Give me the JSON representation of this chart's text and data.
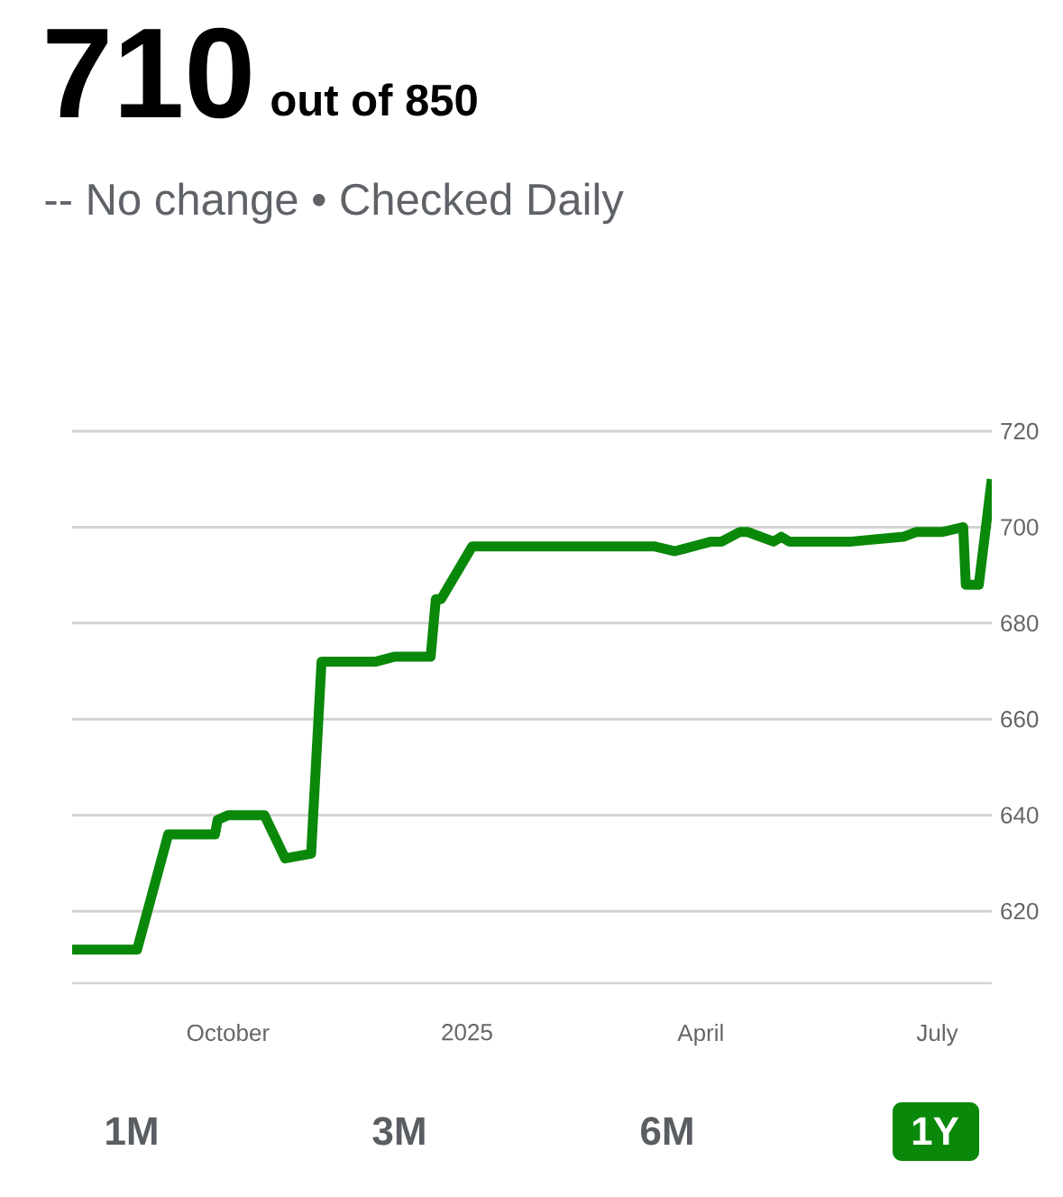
{
  "chart_data": {
    "type": "line",
    "title": "710",
    "subtitle": "out of 850",
    "annotations": [
      "-- No change • Checked Daily",
      "1M",
      "3M",
      "6M",
      "1Y"
    ],
    "x": [
      "2024-08-02",
      "2024-08-27",
      "2024-09-08",
      "2024-09-26",
      "2024-09-27",
      "2024-10-01",
      "2024-10-15",
      "2024-10-23",
      "2024-11-02",
      "2024-11-06",
      "2024-11-27",
      "2024-12-04",
      "2024-12-18",
      "2024-12-20",
      "2024-12-22",
      "2025-01-03",
      "2025-03-14",
      "2025-03-22",
      "2025-03-29",
      "2025-04-05",
      "2025-04-09",
      "2025-04-16",
      "2025-04-19",
      "2025-04-29",
      "2025-05-02",
      "2025-05-05",
      "2025-05-29",
      "2025-06-18",
      "2025-06-23",
      "2025-07-03",
      "2025-07-11",
      "2025-07-12",
      "2025-07-17",
      "2025-07-22"
    ],
    "series": [
      {
        "color": "#0a880a",
        "values": [
          612,
          612,
          636,
          636,
          639,
          640,
          640,
          631,
          632,
          672,
          672,
          673,
          673,
          685,
          685,
          696,
          696,
          695,
          696,
          697,
          697,
          699,
          699,
          697,
          698,
          697,
          697,
          698,
          699,
          699,
          700,
          688,
          688,
          710
        ]
      }
    ],
    "xlim": [
      "2024-08-02",
      "2025-07-22"
    ],
    "xticks": [
      {
        "value": "2024-10-01",
        "label": "October"
      },
      {
        "value": "2025-01-01",
        "label": "2025"
      },
      {
        "value": "2025-04-01",
        "label": "April"
      },
      {
        "value": "2025-07-01",
        "label": "July"
      }
    ],
    "ylim": [
      605,
      720
    ],
    "yticks": [
      620,
      640,
      660,
      680,
      700,
      720
    ],
    "grid": "y",
    "line_style": "solid"
  }
}
